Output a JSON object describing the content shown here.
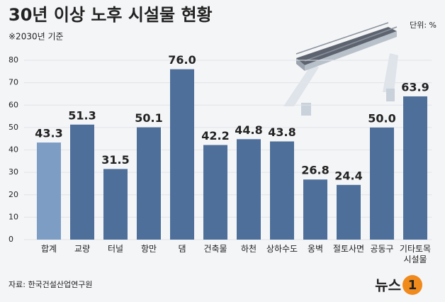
{
  "chart_data": {
    "type": "bar",
    "title": "30년 이상 노후 시설물 현황",
    "subtitle": "※2030년 기준",
    "unit": "단위: %",
    "source": "자료: 한국건설산업연구원",
    "logo": {
      "text": "뉴스",
      "mark": "1"
    },
    "categories": [
      "합계",
      "교량",
      "터널",
      "항만",
      "댐",
      "건축물",
      "하천",
      "상하수도",
      "옹벽",
      "절토사면",
      "공동구",
      "기타토목\n시설물"
    ],
    "values": [
      43.3,
      51.3,
      31.5,
      50.1,
      76.0,
      42.2,
      44.8,
      43.8,
      26.8,
      24.4,
      50.0,
      63.9
    ],
    "value_labels": [
      "43.3",
      "51.3",
      "31.5",
      "50.1",
      "76.0",
      "42.2",
      "44.8",
      "43.8",
      "26.8",
      "24.4",
      "50.0",
      "63.9"
    ],
    "colors": [
      "#7d9dc4",
      "#4e6f9a",
      "#4e6f9a",
      "#4e6f9a",
      "#4e6f9a",
      "#4e6f9a",
      "#4e6f9a",
      "#4e6f9a",
      "#4e6f9a",
      "#4e6f9a",
      "#4e6f9a",
      "#4e6f9a"
    ],
    "ylim": [
      0,
      80
    ],
    "yticks": [
      0,
      10,
      20,
      30,
      40,
      50,
      60,
      70,
      80
    ],
    "grid": true
  }
}
